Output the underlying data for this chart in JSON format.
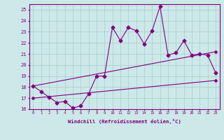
{
  "x_values": [
    0,
    1,
    2,
    3,
    4,
    5,
    6,
    7,
    8,
    9,
    10,
    11,
    12,
    13,
    14,
    15,
    16,
    17,
    18,
    19,
    20,
    21,
    22,
    23
  ],
  "series1": [
    18.1,
    17.6,
    17.1,
    16.6,
    16.7,
    16.1,
    16.3,
    17.4,
    19.0,
    19.0,
    23.4,
    22.2,
    23.4,
    23.1,
    21.9,
    23.1,
    25.3,
    20.9,
    21.1,
    22.2,
    20.9,
    21.0,
    20.9,
    19.3
  ],
  "series2_x": [
    0,
    23
  ],
  "series2_y": [
    18.1,
    21.2
  ],
  "series3_x": [
    0,
    23
  ],
  "series3_y": [
    17.0,
    18.6
  ],
  "line_color": "#800080",
  "bg_color": "#cce8e8",
  "grid_color": "#aacccc",
  "xlabel": "Windchill (Refroidissement éolien,°C)",
  "ylim": [
    16,
    25.5
  ],
  "xlim": [
    -0.5,
    23.5
  ],
  "yticks": [
    16,
    17,
    18,
    19,
    20,
    21,
    22,
    23,
    24,
    25
  ],
  "xticks": [
    0,
    1,
    2,
    3,
    4,
    5,
    6,
    7,
    8,
    9,
    10,
    11,
    12,
    13,
    14,
    15,
    16,
    17,
    18,
    19,
    20,
    21,
    22,
    23
  ]
}
